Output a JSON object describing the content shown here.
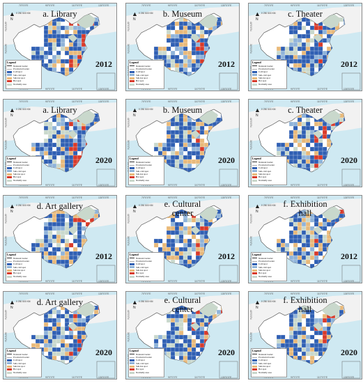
{
  "colors": {
    "cold": "#2f5fb3",
    "subcold": "#8fb3d9",
    "subhot": "#e8b97a",
    "hot": "#d83a2a",
    "normally": "#c9d8cc",
    "land": "#ffffff",
    "sea": "#cfe9f2",
    "outside": "#f2f2f2"
  },
  "legend": {
    "title": "Legend",
    "items": [
      {
        "label": "National border",
        "kind": "line-dark"
      },
      {
        "label": "Provincial border",
        "kind": "line-light"
      },
      {
        "label": "Cold spot",
        "kind": "cold"
      },
      {
        "label": "Sub-cold spot",
        "kind": "subcold"
      },
      {
        "label": "Sub-hot spot",
        "kind": "subhot"
      },
      {
        "label": "Hot spot",
        "kind": "hot"
      },
      {
        "label": "Normally area",
        "kind": "normally"
      }
    ]
  },
  "north_arrow": "N",
  "scale_text": "0 250 500 KM",
  "ticks": {
    "top": [
      "70°0'0\"E",
      "90°0'0\"E",
      "110°0'0\"E",
      "130°0'0\"E"
    ],
    "side": [
      "40°0'0\"N",
      "30°0'0\"N",
      "20°0'0\"N"
    ]
  },
  "panels": [
    {
      "title_lines": [
        "a. Library"
      ],
      "year": "2012",
      "pattern": "a12"
    },
    {
      "title_lines": [
        "b. Museum"
      ],
      "year": "2012",
      "pattern": "b12"
    },
    {
      "title_lines": [
        "c. Theater"
      ],
      "year": "2012",
      "pattern": "c12"
    },
    {
      "title_lines": [
        "a. Library"
      ],
      "year": "2020",
      "pattern": "a20"
    },
    {
      "title_lines": [
        "b. Museum"
      ],
      "year": "2020",
      "pattern": "b20"
    },
    {
      "title_lines": [
        "c. Theater"
      ],
      "year": "2020",
      "pattern": "c20"
    },
    {
      "title_lines": [
        "d. Art gallery"
      ],
      "year": "2012",
      "pattern": "d12"
    },
    {
      "title_lines": [
        "e. Cultural",
        "center"
      ],
      "year": "2012",
      "pattern": "e12"
    },
    {
      "title_lines": [
        "f. Exhibition",
        "hall"
      ],
      "year": "2012",
      "pattern": "f12"
    },
    {
      "title_lines": [
        "d. Art gallery"
      ],
      "year": "2020",
      "pattern": "d20"
    },
    {
      "title_lines": [
        "e. Cultural",
        "center"
      ],
      "year": "2020",
      "pattern": "e20"
    },
    {
      "title_lines": [
        "f. Exhibition",
        "hall"
      ],
      "year": "2020",
      "pattern": "f20"
    }
  ]
}
